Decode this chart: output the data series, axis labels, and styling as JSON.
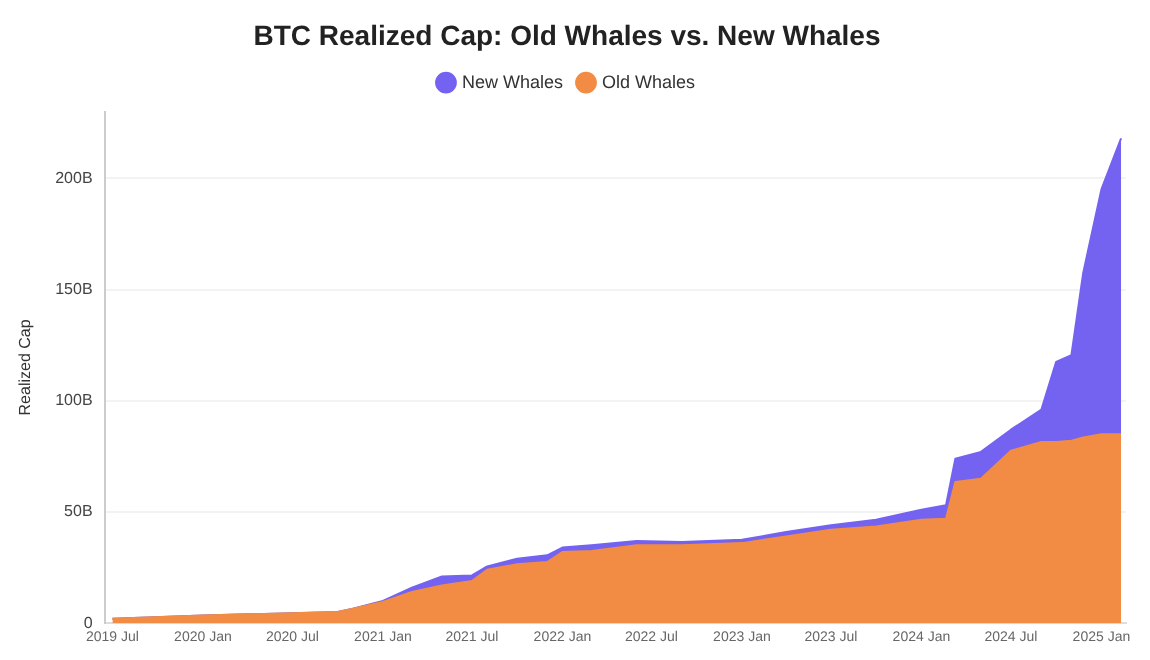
{
  "chart_data": {
    "type": "area",
    "title": "BTC Realized Cap: Old Whales vs. New Whales",
    "ylabel": "Realized Cap",
    "stacked": true,
    "legend": "top",
    "grid": "y",
    "x": [
      "2019-07-01",
      "2020-01-01",
      "2020-07-01",
      "2020-10-01",
      "2020-11-01",
      "2021-01-01",
      "2021-03-01",
      "2021-05-01",
      "2021-07-01",
      "2021-08-01",
      "2021-10-01",
      "2021-12-01",
      "2022-01-01",
      "2022-03-01",
      "2022-06-01",
      "2022-09-01",
      "2023-01-01",
      "2023-04-01",
      "2023-07-01",
      "2023-10-01",
      "2024-01-01",
      "2024-02-20",
      "2024-03-10",
      "2024-05-01",
      "2024-07-01",
      "2024-09-01",
      "2024-10-01",
      "2024-11-01",
      "2024-11-25",
      "2025-01-01",
      "2025-02-10"
    ],
    "series": [
      {
        "name": "Old Whales",
        "color": "#f28c44",
        "values": [
          2,
          3.5,
          4.5,
          5,
          6.5,
          9.5,
          14,
          17,
          19,
          24,
          26.5,
          27.5,
          32,
          32.5,
          35,
          35,
          36,
          39,
          42,
          43.5,
          46.5,
          47,
          63.5,
          65,
          77.5,
          81.5,
          81.5,
          82,
          83.5,
          85,
          85
        ]
      },
      {
        "name": "New Whales",
        "color": "#7462f0",
        "values": [
          0,
          0,
          0,
          0,
          0,
          0.5,
          2,
          4,
          2.5,
          1.5,
          2.5,
          3,
          2,
          2.5,
          2,
          1.5,
          1.5,
          2,
          2,
          3,
          4.5,
          6,
          10.5,
          12,
          9.5,
          14.5,
          36,
          38.5,
          74,
          110,
          133
        ]
      }
    ],
    "xlim": [
      "2019-06-15",
      "2025-02-20"
    ],
    "xticks": [
      {
        "value": "2019-07-01",
        "label": "2019 Jul"
      },
      {
        "value": "2020-01-01",
        "label": "2020 Jan"
      },
      {
        "value": "2020-07-01",
        "label": "2020 Jul"
      },
      {
        "value": "2021-01-01",
        "label": "2021 Jan"
      },
      {
        "value": "2021-07-01",
        "label": "2021 Jul"
      },
      {
        "value": "2022-01-01",
        "label": "2022 Jan"
      },
      {
        "value": "2022-07-01",
        "label": "2022 Jul"
      },
      {
        "value": "2023-01-01",
        "label": "2023 Jan"
      },
      {
        "value": "2023-07-01",
        "label": "2023 Jul"
      },
      {
        "value": "2024-01-01",
        "label": "2024 Jan"
      },
      {
        "value": "2024-07-01",
        "label": "2024 Jul"
      },
      {
        "value": "2025-01-01",
        "label": "2025 Jan"
      }
    ],
    "ylim": [
      0,
      230
    ],
    "yticks": [
      0,
      {
        "value": 50,
        "label": "50B"
      },
      {
        "value": 100,
        "label": "100B"
      },
      {
        "value": 150,
        "label": "150B"
      },
      {
        "value": 200,
        "label": "200B"
      }
    ]
  }
}
